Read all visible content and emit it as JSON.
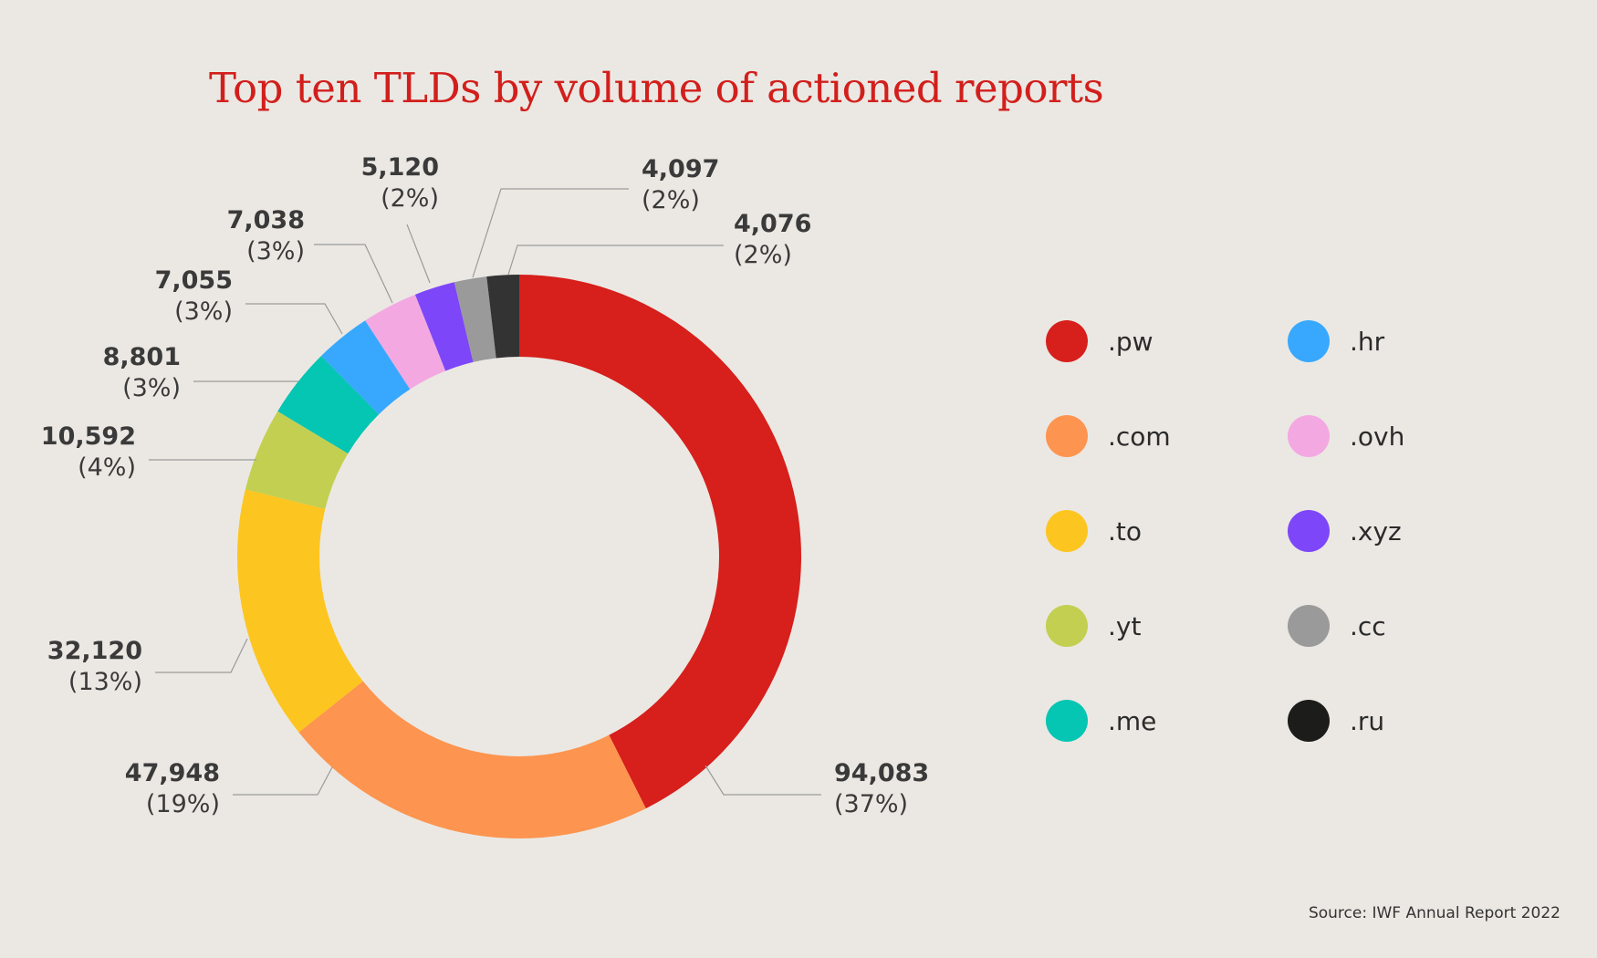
{
  "chart_data": {
    "type": "pie",
    "title": "Top ten TLDs by volume of actioned reports",
    "categories": [
      ".pw",
      ".com",
      ".to",
      ".yt",
      ".me",
      ".hr",
      ".ovh",
      ".xyz",
      ".cc",
      ".ru"
    ],
    "values": [
      94083,
      47948,
      32120,
      10592,
      8801,
      7055,
      7038,
      5120,
      4097,
      4076
    ],
    "value_labels": [
      "94,083",
      "47,948",
      "32,120",
      "10,592",
      "8,801",
      "7,055",
      "7,038",
      "5,120",
      "4,097",
      "4,076"
    ],
    "percent_labels": [
      "(37%)",
      "(19%)",
      "(13%)",
      "(4%)",
      "(3%)",
      "(3%)",
      "(3%)",
      "(2%)",
      "(2%)",
      "(2%)"
    ],
    "colors": [
      "#d71f1b",
      "#fd944f",
      "#fdc51f",
      "#c3cf50",
      "#05c5b3",
      "#37a8fd",
      "#f3a8e2",
      "#7d46f8",
      "#9a9a9a",
      "#333333"
    ],
    "legend_colors": [
      "#d71f1b",
      "#fd944f",
      "#fdc51f",
      "#c3cf50",
      "#05c5b3",
      "#37a8fd",
      "#f3a8e2",
      "#7d46f8",
      "#9a9a9a",
      "#1c1c1a"
    ],
    "legend_position": "right",
    "donut": true
  },
  "footer": {
    "source": "Source: IWF Annual Report 2022"
  }
}
